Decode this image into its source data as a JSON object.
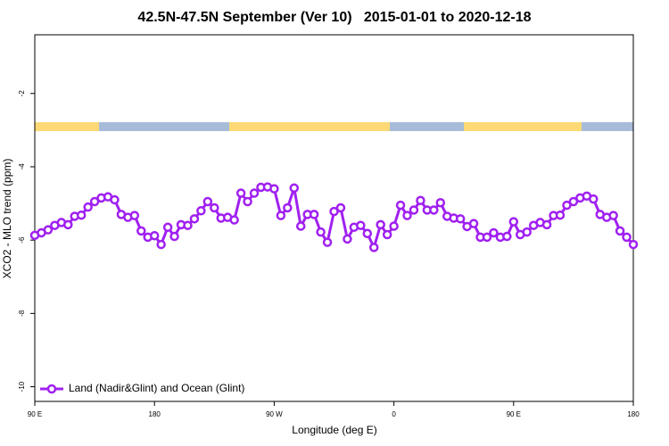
{
  "chart_data": {
    "type": "line",
    "title": "42.5N-47.5N September (Ver 10)   2015-01-01 to 2020-12-18",
    "x_label": "Longitude (deg E)",
    "y_label": "XCO2 - MLO trend (ppm)",
    "x": [
      90,
      95,
      100,
      105,
      110,
      115,
      120,
      125,
      130,
      135,
      140,
      145,
      150,
      155,
      160,
      165,
      170,
      175,
      180,
      185,
      190,
      195,
      200,
      205,
      210,
      215,
      220,
      225,
      230,
      235,
      240,
      245,
      250,
      255,
      260,
      265,
      270,
      275,
      280,
      285,
      290,
      295,
      300,
      305,
      310,
      315,
      320,
      325,
      330,
      335,
      340,
      345,
      350,
      355,
      360,
      365,
      370,
      375,
      380,
      385,
      390,
      395,
      400,
      405,
      410,
      415,
      420,
      425,
      430,
      435,
      440,
      445,
      450,
      455,
      460,
      465,
      470,
      475,
      480,
      485,
      490,
      495,
      500,
      505,
      510,
      515,
      520,
      525,
      530,
      535,
      540
    ],
    "series": [
      {
        "name": "Land (Nadir&Glint) and Ocean (Glint)",
        "color": "#a020f0",
        "values": [
          -5.87,
          -5.8,
          -5.72,
          -5.6,
          -5.52,
          -5.58,
          -5.35,
          -5.32,
          -5.1,
          -4.95,
          -4.85,
          -4.82,
          -4.9,
          -5.3,
          -5.38,
          -5.33,
          -5.75,
          -5.92,
          -5.88,
          -6.12,
          -5.65,
          -5.9,
          -5.58,
          -5.6,
          -5.42,
          -5.2,
          -4.95,
          -5.12,
          -5.4,
          -5.38,
          -5.45,
          -4.72,
          -4.95,
          -4.72,
          -4.56,
          -4.55,
          -4.6,
          -5.33,
          -5.12,
          -4.58,
          -5.62,
          -5.3,
          -5.3,
          -5.78,
          -6.06,
          -5.22,
          -5.12,
          -5.97,
          -5.65,
          -5.6,
          -5.82,
          -6.2,
          -5.58,
          -5.85,
          -5.62,
          -5.05,
          -5.33,
          -5.18,
          -4.92,
          -5.18,
          -5.18,
          -4.98,
          -5.35,
          -5.4,
          -5.42,
          -5.63,
          -5.55,
          -5.92,
          -5.92,
          -5.8,
          -5.92,
          -5.9,
          -5.5,
          -5.85,
          -5.78,
          -5.6,
          -5.52,
          -5.58,
          -5.33,
          -5.32,
          -5.05,
          -4.95,
          -4.85,
          -4.8,
          -4.88,
          -5.3,
          -5.38,
          -5.33,
          -5.75,
          -5.92,
          -6.12
        ]
      }
    ],
    "xlim": [
      90,
      540
    ],
    "xticks": [
      {
        "value": 90,
        "label": "90 E"
      },
      180,
      {
        "value": 270,
        "label": "90 W"
      },
      {
        "value": 360,
        "label": "0"
      },
      {
        "value": 450,
        "label": "90 E"
      },
      {
        "value": 540,
        "label": "180"
      }
    ],
    "ylim": [
      -10.4,
      -0.4
    ],
    "yticks": [
      -2,
      -4,
      -6,
      -8,
      -10
    ],
    "legend": "bottom-left"
  }
}
